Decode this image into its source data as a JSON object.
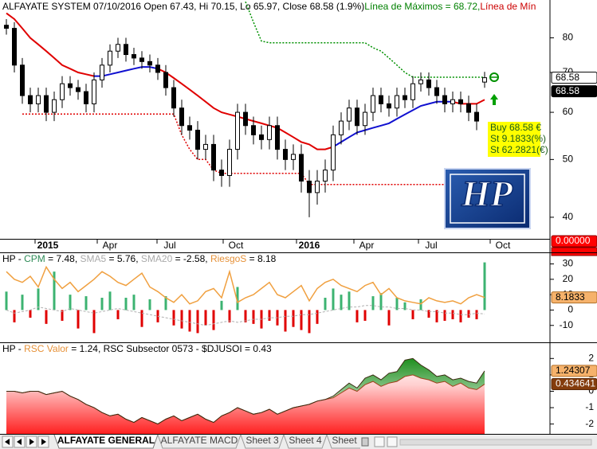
{
  "chart_data": [
    {
      "type": "candlestick",
      "title_parts": [
        {
          "text": "ALFAYATE SYSTEM 07/10/2016 Open 67.43, Hi 70.15, Lo 65.97, Close 68.58 (1.9%)",
          "color": "#000000"
        },
        {
          "text": "Línea de Máximos = 68.72,",
          "color": "#008000"
        },
        {
          "text": "Línea de Mín",
          "color": "#cc0000"
        }
      ],
      "open": [
        84,
        83,
        72,
        64,
        62,
        64,
        60,
        63,
        67,
        66,
        65,
        62,
        68,
        72,
        76,
        78,
        75,
        74,
        73,
        72,
        70,
        66,
        61,
        57,
        56,
        52,
        53,
        48,
        47,
        52,
        60,
        57,
        55,
        54,
        57,
        52,
        50,
        51,
        46,
        44,
        46,
        48,
        55,
        58,
        61,
        57,
        60,
        64,
        62,
        61,
        64,
        63,
        67,
        68,
        66,
        64,
        62,
        63,
        62,
        60,
        67.43
      ],
      "high": [
        86,
        85,
        74,
        66,
        66,
        66,
        65,
        69,
        69,
        68,
        67,
        70,
        74,
        78,
        80,
        80,
        77,
        76,
        75,
        74,
        72,
        68,
        63,
        59,
        58,
        55,
        55,
        50,
        54,
        62,
        62,
        59,
        57,
        59,
        59,
        54,
        53,
        53,
        48,
        48,
        50,
        57,
        60,
        63,
        63,
        62,
        66,
        66,
        64,
        66,
        66,
        69,
        70,
        70,
        68,
        66,
        65,
        65,
        64,
        62,
        70.15
      ],
      "low": [
        81,
        70,
        62,
        60,
        60,
        58,
        58,
        61,
        64,
        63,
        60,
        60,
        66,
        70,
        74,
        73,
        72,
        71,
        70,
        68,
        64,
        59,
        55,
        54,
        50,
        50,
        46,
        45,
        45,
        50,
        55,
        53,
        52,
        52,
        50,
        48,
        48,
        44,
        40,
        42,
        44,
        46,
        53,
        56,
        55,
        55,
        58,
        60,
        59,
        59,
        61,
        61,
        65,
        64,
        62,
        60,
        60,
        60,
        58,
        56,
        65.97
      ],
      "close": [
        83,
        72,
        64,
        62,
        64,
        60,
        63,
        67,
        66,
        65,
        62,
        68,
        72,
        76,
        78,
        75,
        74,
        73,
        72,
        70,
        66,
        61,
        57,
        56,
        52,
        53,
        48,
        47,
        52,
        60,
        57,
        55,
        54,
        57,
        52,
        50,
        51,
        46,
        44,
        46,
        48,
        55,
        58,
        61,
        57,
        60,
        64,
        62,
        61,
        64,
        63,
        67,
        68,
        66,
        64,
        62,
        63,
        62,
        60,
        58,
        68.58
      ],
      "ma_red": [
        88,
        86,
        83,
        80,
        78,
        76,
        74,
        72,
        71,
        70,
        69.5,
        69,
        null,
        null,
        null,
        null,
        null,
        null,
        null,
        71,
        70,
        68.5,
        67,
        65.5,
        64,
        62.5,
        61,
        60,
        59.5,
        59,
        58.5,
        58,
        57.5,
        57,
        56.5,
        55.5,
        54.5,
        53.5,
        53,
        52,
        52,
        52.5,
        null,
        null,
        null,
        null,
        null,
        null,
        null,
        null,
        null,
        null,
        null,
        null,
        null,
        null,
        62.5,
        62,
        62,
        62,
        63
      ],
      "ma_blue": [
        null,
        null,
        null,
        null,
        null,
        null,
        null,
        null,
        null,
        null,
        null,
        69,
        69,
        69.5,
        70,
        70.5,
        71,
        71.5,
        71.5,
        71,
        null,
        null,
        null,
        null,
        null,
        null,
        null,
        null,
        null,
        null,
        null,
        null,
        null,
        null,
        null,
        null,
        null,
        null,
        null,
        null,
        null,
        52.5,
        53.5,
        54.5,
        55.5,
        56,
        56.5,
        57,
        57.5,
        58.5,
        59.5,
        60.5,
        61.5,
        62,
        62.5,
        62.5,
        62.5,
        null,
        null,
        null,
        null
      ],
      "max_line": [
        null,
        null,
        null,
        null,
        null,
        null,
        null,
        null,
        null,
        null,
        null,
        null,
        null,
        null,
        null,
        null,
        null,
        null,
        null,
        null,
        null,
        null,
        null,
        null,
        null,
        null,
        null,
        null,
        null,
        null,
        92,
        85,
        79,
        78.5,
        78.5,
        78.5,
        78.5,
        78.5,
        78.5,
        78.5,
        78.5,
        78.5,
        78.5,
        78.5,
        78.5,
        78.5,
        77,
        76,
        74,
        72,
        70,
        68.72,
        68.72,
        68.72,
        68.72,
        68.72,
        68.72,
        68.72,
        68.72,
        68.72,
        68.72
      ],
      "min_line": [
        null,
        null,
        59.6,
        59.6,
        59.6,
        59.6,
        59.6,
        59.6,
        59.6,
        59.6,
        59.6,
        59.6,
        59.6,
        59.6,
        59.6,
        59.6,
        59.6,
        59.6,
        59.6,
        59.6,
        59.6,
        59.6,
        55,
        52,
        50,
        50,
        48,
        47.4,
        47.4,
        47.4,
        47.4,
        47.4,
        47.4,
        47.4,
        47.4,
        47.4,
        47.4,
        47.4,
        45.4,
        45.4,
        45.4,
        45.4,
        45.4,
        45.4,
        45.4,
        45.4,
        45.4,
        45.4,
        45.4,
        45.4,
        45.4,
        45.4,
        45.4,
        45.4,
        45.4,
        45.4,
        null,
        null,
        null,
        null,
        null
      ],
      "colors": {
        "ma_red": "#e00000",
        "ma_blue": "#1010d0",
        "max_line": "#009000",
        "min_line": "#e00000"
      },
      "log_scale": true,
      "ylim": [
        36.8,
        92.6
      ],
      "yticks": [
        40,
        50,
        60,
        70,
        80
      ],
      "xlim": [
        -0.5,
        68
      ],
      "xticks": [
        {
          "value": 5.2,
          "label": "2015",
          "bold": true
        },
        {
          "value": 13,
          "label": "Apr"
        },
        {
          "value": 20.5,
          "label": "Jul"
        },
        {
          "value": 28.8,
          "label": "Oct"
        },
        {
          "value": 38,
          "label": "2016",
          "bold": true
        },
        {
          "value": 45.2,
          "label": "Apr"
        },
        {
          "value": 53.3,
          "label": "Jul"
        },
        {
          "value": 62.3,
          "label": "Oct"
        }
      ],
      "annotations": [
        "Buy 68.58 €",
        "St 9.1833(%)",
        "St 62.2821(€)"
      ],
      "value_boxes": [
        68.58,
        68.58,
        {
          "value": 0,
          "label": "0.00000"
        }
      ],
      "logo": "HP"
    },
    {
      "type": "bar",
      "title_parts": [
        {
          "text": "HP - ",
          "color": "#000000"
        },
        {
          "text": "CPM",
          "color": "#2e8b57"
        },
        {
          "text": " = 7.48, ",
          "color": "#000000"
        },
        {
          "text": "SMA5",
          "color": "#aaaaaa"
        },
        {
          "text": " = 5.76, ",
          "color": "#000000"
        },
        {
          "text": "SMA20",
          "color": "#aaaaaa"
        },
        {
          "text": " = -2.58, ",
          "color": "#000000"
        },
        {
          "text": "RiesgoS",
          "color": "#e69138"
        },
        {
          "text": " = 8.18",
          "color": "#000000"
        }
      ],
      "values": [
        12,
        -8,
        10,
        -5,
        14,
        -9,
        25,
        -7,
        10,
        -12,
        9,
        -15,
        8,
        12,
        -6,
        8,
        10,
        -11,
        7,
        -8,
        9,
        -10,
        -12,
        -14,
        -15,
        -10,
        -13,
        6,
        -8,
        15,
        -8,
        -9,
        -12,
        -7,
        -10,
        -14,
        -11,
        -13,
        -15,
        -9,
        8,
        14,
        10,
        12,
        -8,
        -7,
        9,
        11,
        -10,
        8,
        5,
        -6,
        7,
        -5,
        -8,
        -7,
        -6,
        -8,
        -5,
        -6,
        31
      ],
      "positive_color": "#3cb371",
      "negative_color": "#e00000",
      "orange_line": [
        25,
        20,
        18,
        22,
        15,
        28,
        20,
        14,
        18,
        12,
        16,
        20,
        25,
        22,
        18,
        16,
        20,
        24,
        15,
        12,
        8,
        5,
        10,
        4,
        6,
        12,
        14,
        8,
        25,
        5,
        8,
        10,
        14,
        18,
        10,
        8,
        12,
        16,
        6,
        14,
        18,
        20,
        16,
        14,
        12,
        16,
        18,
        10,
        14,
        8,
        6,
        5,
        4,
        8,
        6,
        5,
        6,
        4,
        8,
        10,
        8.18
      ],
      "gray_line": [
        0,
        -2,
        -1,
        0,
        2,
        1,
        0,
        -1,
        1,
        0,
        -1,
        -2,
        -1,
        0,
        1,
        0,
        -1,
        -2,
        -3,
        -4,
        -5,
        -6,
        -7,
        -8,
        -9,
        -10,
        -9,
        -8,
        -7,
        -8,
        -7,
        -6,
        -6,
        -5,
        -5,
        -4,
        -4,
        -3,
        -3,
        -2,
        -1,
        0,
        1,
        2,
        2,
        3,
        3,
        2,
        2,
        1,
        1,
        0,
        0,
        -1,
        -1,
        -2,
        -2,
        -3,
        -3,
        -2,
        -2.58
      ],
      "colors": {
        "orange_line": "#f0a040",
        "gray_line": "#b0b0b0"
      },
      "ylim": [
        -21,
        37
      ],
      "yticks": [
        -10,
        0,
        10,
        20,
        30
      ],
      "value_boxes": [
        8.1833
      ]
    },
    {
      "type": "area",
      "title_parts": [
        {
          "text": "HP - ",
          "color": "#000000"
        },
        {
          "text": "RSC Valor",
          "color": "#e69138"
        },
        {
          "text": " = 1.24, RSC Subsector 0573 - $DJUSOI = 0.43",
          "color": "#000000"
        }
      ],
      "valor": [
        0,
        0,
        -0.1,
        0,
        0,
        -0.2,
        -0.1,
        0,
        -0.3,
        -0.5,
        -0.8,
        -1.0,
        -1.3,
        -1.5,
        -1.4,
        -1.7,
        -1.9,
        -1.6,
        -1.8,
        -2.0,
        -1.7,
        -1.5,
        -1.8,
        -1.6,
        -1.4,
        -1.7,
        -1.9,
        -1.5,
        -1.3,
        -1.0,
        -1.2,
        -1.4,
        -1.3,
        -1.1,
        -1.4,
        -1.2,
        -1.0,
        -0.9,
        -0.8,
        -0.6,
        -0.5,
        -0.3,
        0.1,
        0.5,
        0.2,
        0.8,
        1.0,
        0.7,
        1.1,
        1.2,
        1.9,
        2.0,
        1.6,
        1.3,
        0.9,
        1.0,
        0.7,
        0.8,
        0.6,
        0.5,
        1.24
      ],
      "subsector": [
        0,
        0,
        -0.1,
        0,
        0,
        -0.2,
        -0.1,
        0,
        -0.3,
        -0.5,
        -0.8,
        -1.0,
        -1.3,
        -1.5,
        -1.4,
        -1.7,
        -1.9,
        -1.6,
        -1.8,
        -2.0,
        -1.7,
        -1.5,
        -1.8,
        -1.6,
        -1.4,
        -1.7,
        -1.9,
        -1.5,
        -1.3,
        -1.0,
        -1.2,
        -1.4,
        -1.3,
        -1.1,
        -1.4,
        -1.2,
        -1.0,
        -0.9,
        -0.8,
        -0.6,
        -0.5,
        -0.4,
        -0.1,
        0.2,
        0.0,
        0.4,
        0.6,
        0.3,
        0.5,
        0.6,
        0.9,
        1.0,
        0.8,
        0.7,
        0.5,
        0.6,
        0.3,
        0.5,
        0.2,
        0.1,
        0.43
      ],
      "colors": {
        "valor": "#3a2a10",
        "subsector": "#a0401a"
      },
      "ylim": [
        -2.6,
        2.5
      ],
      "yticks": [
        -2,
        -1,
        0,
        1,
        2
      ],
      "value_boxes": [
        1.24307,
        {
          "value": 0.434641,
          "label": "0.434641"
        }
      ]
    }
  ],
  "tabs": [
    "ALFAYATE GENERAL",
    "ALFAYATE MACD",
    "Sheet 3",
    "Sheet 4",
    "Sheet"
  ]
}
